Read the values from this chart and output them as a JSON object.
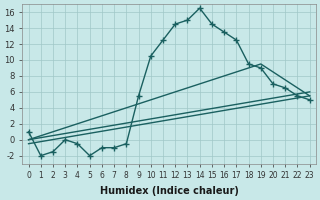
{
  "xlabel": "Humidex (Indice chaleur)",
  "background_color": "#c8e8e8",
  "grid_color": "#a0c8c8",
  "line_color": "#1a6060",
  "xlim": [
    -0.5,
    23.5
  ],
  "ylim": [
    -3,
    17
  ],
  "xticks": [
    0,
    1,
    2,
    3,
    4,
    5,
    6,
    7,
    8,
    9,
    10,
    11,
    12,
    13,
    14,
    15,
    16,
    17,
    18,
    19,
    20,
    21,
    22,
    23
  ],
  "yticks": [
    -2,
    0,
    2,
    4,
    6,
    8,
    10,
    12,
    14,
    16
  ],
  "series1_x": [
    0,
    1,
    2,
    3,
    4,
    5,
    6,
    7,
    8,
    9,
    10,
    11,
    12,
    13,
    14,
    15,
    16,
    17,
    18,
    19,
    20,
    21,
    22,
    23
  ],
  "series1_y": [
    1,
    -2,
    -1.5,
    0,
    -0.5,
    -2,
    -1,
    -1,
    -0.5,
    5.5,
    10.5,
    12.5,
    14.5,
    15,
    16.5,
    14.5,
    13.5,
    12.5,
    9.5,
    9,
    7,
    6.5,
    5.5,
    5
  ],
  "series2_x": [
    0,
    23
  ],
  "series2_y": [
    0,
    6
  ],
  "series3_x": [
    0,
    23
  ],
  "series3_y": [
    -0.5,
    5.5
  ],
  "series4_x": [
    0,
    19,
    23
  ],
  "series4_y": [
    0,
    9.5,
    5.5
  ]
}
